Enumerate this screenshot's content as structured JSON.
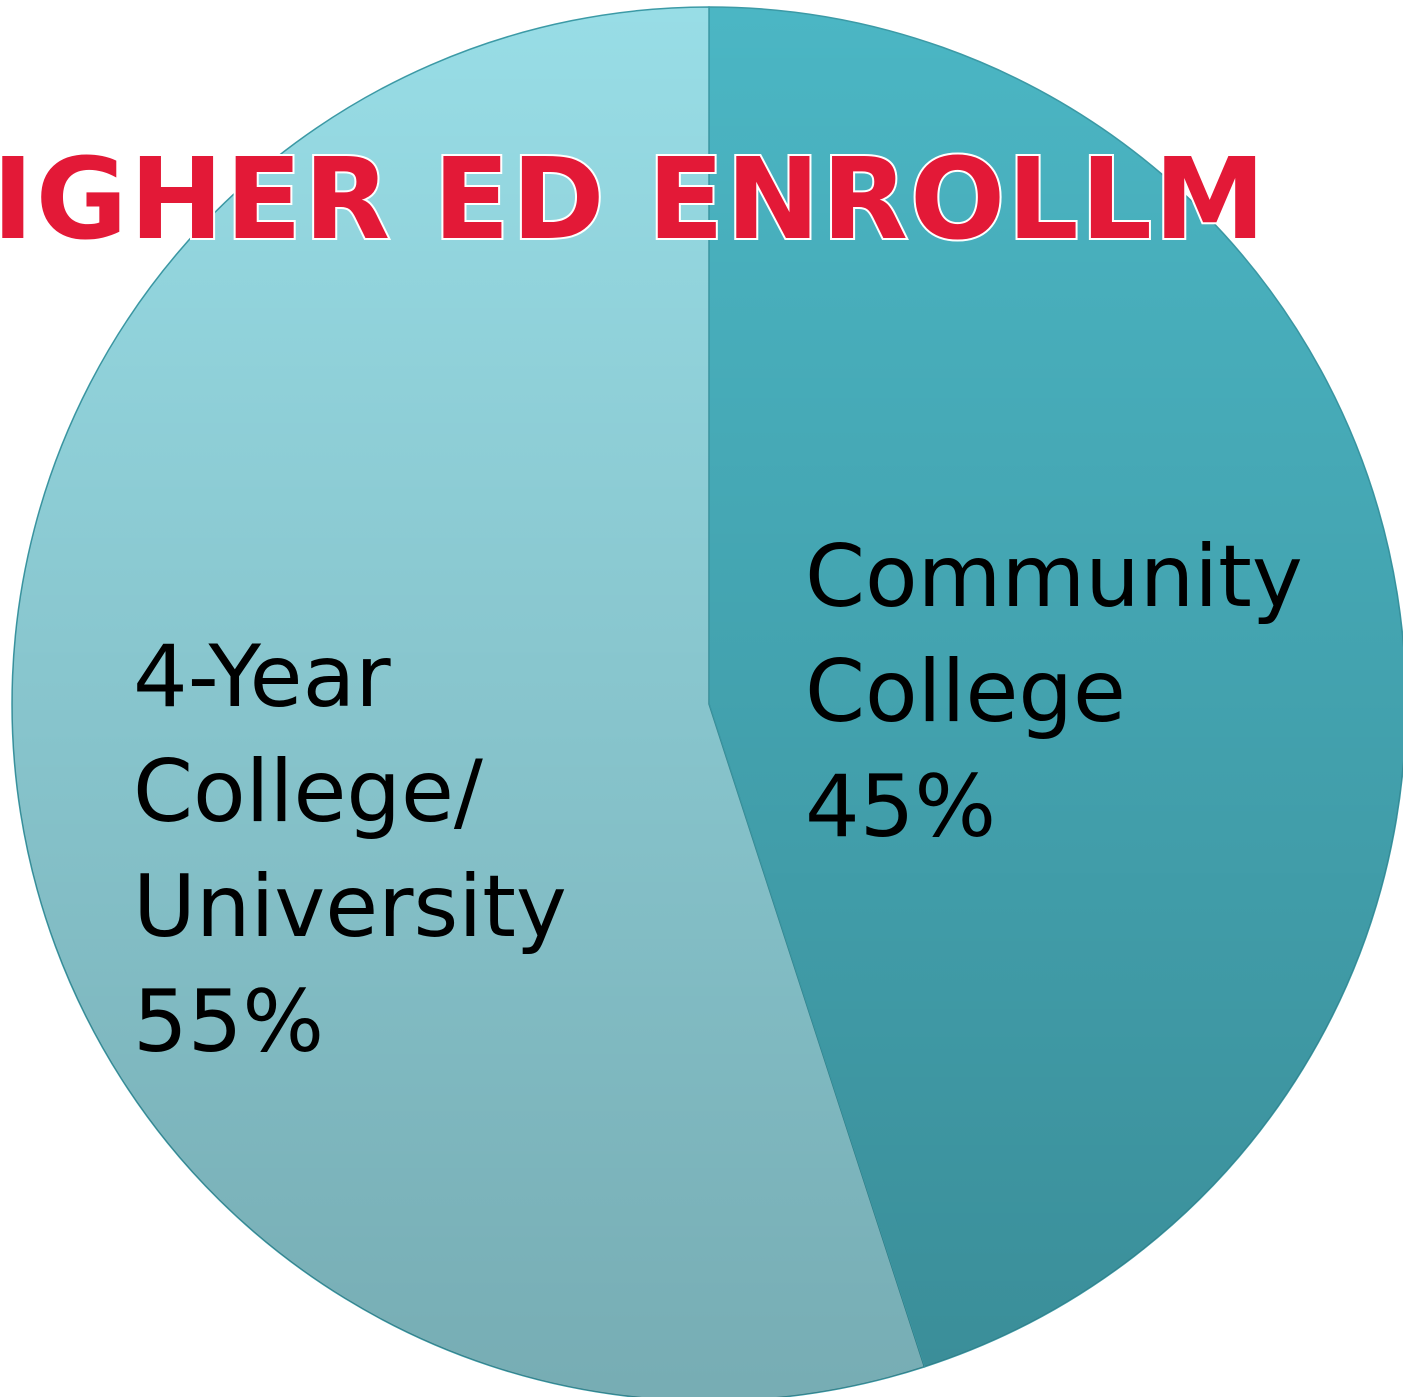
{
  "chart_data": {
    "type": "pie",
    "title": "IGHER ED ENROLLM",
    "categories": [
      "Community College",
      "4-Year College/ University"
    ],
    "values": [
      45,
      55
    ],
    "value_labels": [
      "45%",
      "55%"
    ],
    "colors": [
      "#4bb6c4",
      "#98dde6"
    ]
  }
}
